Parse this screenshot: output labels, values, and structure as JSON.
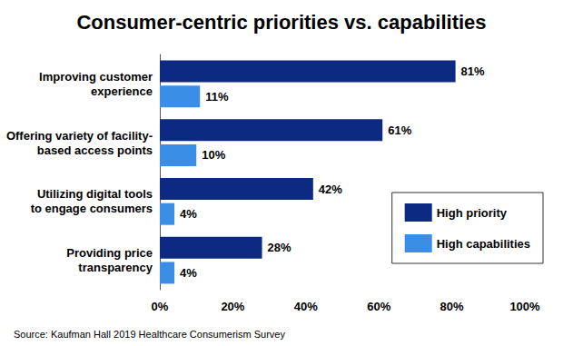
{
  "chart_data": {
    "type": "bar",
    "orientation": "horizontal",
    "title": "Consumer-centric priorities vs. capabilities",
    "source": "Source: Kaufman Hall 2019 Healthcare Consumerism Survey",
    "categories": [
      "Improving customer\nexperience",
      "Offering variety of facility-\nbased access points",
      "Utilizing digital tools\nto engage consumers",
      "Providing price\ntransparency"
    ],
    "series": [
      {
        "name": "High priority",
        "color": "#0c2a82",
        "values": [
          81,
          61,
          42,
          28
        ],
        "value_labels": [
          "81%",
          "61%",
          "42%",
          "28%"
        ]
      },
      {
        "name": "High capabilities",
        "color": "#3b8ee6",
        "values": [
          11,
          10,
          4,
          4
        ],
        "value_labels": [
          "11%",
          "10%",
          "4%",
          "4%"
        ]
      }
    ],
    "xlim": [
      0,
      100
    ],
    "xticks": [
      {
        "value": 0,
        "label": "0%"
      },
      {
        "value": 20,
        "label": "20%"
      },
      {
        "value": 40,
        "label": "40%"
      },
      {
        "value": 60,
        "label": "60%"
      },
      {
        "value": 80,
        "label": "80%"
      },
      {
        "value": 100,
        "label": "100%"
      }
    ],
    "data_labels": true,
    "legend": "lower right",
    "grid": false
  }
}
